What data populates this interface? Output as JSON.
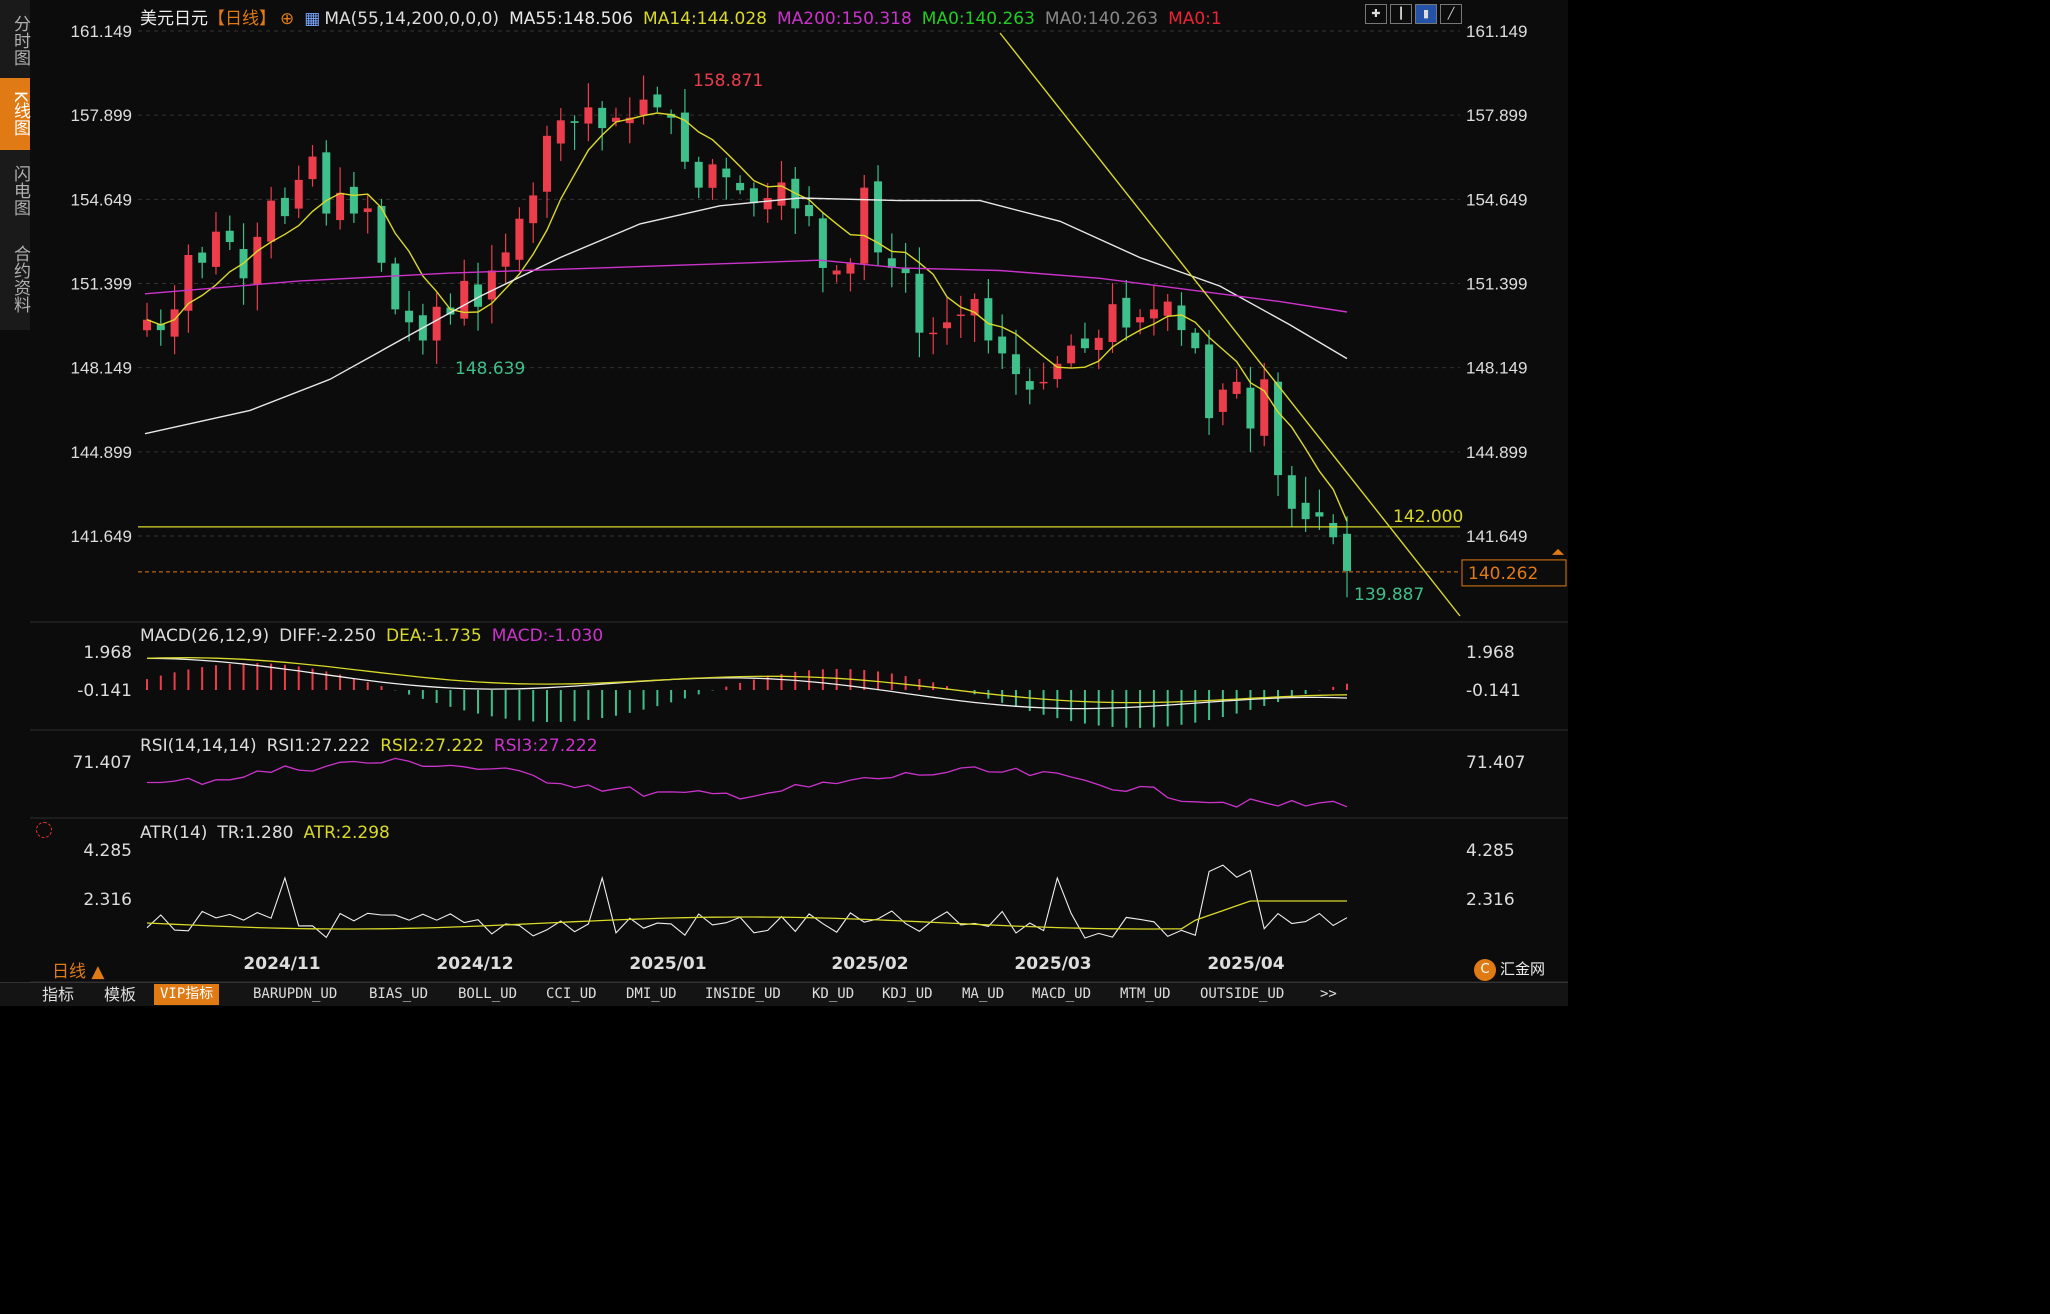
{
  "sidebar": {
    "items": [
      "分时图",
      "K线图",
      "闪电图",
      "合约资料"
    ],
    "active": 1
  },
  "header": {
    "symbol": "美元日元",
    "period": "【日线】",
    "plus": "⊕",
    "ma_label": "MA(55,14,200,0,0,0)",
    "ma55": "MA55:148.506",
    "ma14": "MA14:144.028",
    "ma200": "MA200:150.318",
    "ma0a": "MA0:140.263",
    "ma0b": "MA0:140.263",
    "ma0c": "MA0:1"
  },
  "colors": {
    "up": "#ec3d4c",
    "down": "#3fbf8a",
    "ma14": "#d9d92a",
    "ma55": "#e8e8e8",
    "ma200": "#cc33cc",
    "accent": "#e07a14",
    "grid": "#333333"
  },
  "price_axis": {
    "ticks": [
      "161.149",
      "157.899",
      "154.649",
      "151.399",
      "148.149",
      "144.899",
      "141.649"
    ],
    "current": "140.262",
    "hline_label": "142.000",
    "high_label": "158.871",
    "low1_label": "148.639",
    "low2_label": "139.887"
  },
  "macd": {
    "label": "MACD(26,12,9)",
    "diff": "DIFF:-2.250",
    "dea": "DEA:-1.735",
    "macd": "MACD:-1.030",
    "ticks": [
      "1.968",
      "-0.141"
    ]
  },
  "rsi": {
    "label": "RSI(14,14,14)",
    "rsi1": "RSI1:27.222",
    "rsi2": "RSI2:27.222",
    "rsi3": "RSI3:27.222",
    "ticks": [
      "71.407"
    ]
  },
  "atr": {
    "label": "ATR(14)",
    "tr": "TR:1.280",
    "atr": "ATR:2.298",
    "ticks": [
      "4.285",
      "2.316"
    ]
  },
  "dates": [
    "2024/11",
    "2024/12",
    "2025/01",
    "2025/02",
    "2025/03",
    "2025/04"
  ],
  "period_button": "日线 ▲",
  "tabs": [
    "指标",
    "模板",
    "VIP指标",
    "BARUPDN_UD",
    "BIAS_UD",
    "BOLL_UD",
    "CCI_UD",
    "DMI_UD",
    "INSIDE_UD",
    "KD_UD",
    "KDJ_UD",
    "MA_UD",
    "MACD_UD",
    "MTM_UD",
    "OUTSIDE_UD",
    ">>"
  ],
  "tab_active": 2,
  "logo": "汇金网",
  "chart_data": {
    "type": "candlestick",
    "title": "美元日元 日线",
    "dates": [
      "2024/11",
      "2024/12",
      "2025/01",
      "2025/02",
      "2025/03",
      "2025/04"
    ],
    "close_path": [
      150.0,
      149.6,
      150.4,
      152.5,
      152.2,
      153.4,
      153.0,
      151.6,
      153.2,
      154.6,
      154.0,
      155.4,
      156.3,
      154.1,
      154.9,
      154.1,
      154.3,
      152.2,
      150.4,
      149.9,
      149.2,
      150.5,
      150.2,
      151.5,
      150.5,
      151.9,
      152.6,
      153.9,
      154.8,
      157.1,
      157.7,
      157.6,
      158.2,
      157.4,
      157.8,
      157.8,
      158.5,
      158.2,
      157.8,
      156.1,
      155.1,
      156.0,
      155.5,
      155.0,
      154.5,
      154.7,
      155.3,
      154.3,
      154.0,
      152.0,
      151.9,
      152.2,
      155.1,
      152.6,
      152.0,
      151.8,
      149.5,
      149.5,
      149.9,
      150.2,
      150.8,
      149.2,
      148.7,
      147.9,
      147.3,
      147.6,
      148.3,
      149.0,
      148.9,
      149.3,
      150.6,
      149.7,
      150.1,
      150.4,
      150.7,
      149.6,
      148.9,
      146.2,
      147.3,
      147.6,
      145.8,
      147.7,
      144.0,
      142.7,
      142.3,
      142.4,
      141.6,
      140.3
    ],
    "series": [
      {
        "name": "MA14",
        "value": 144.028
      },
      {
        "name": "MA55",
        "value": 148.506
      },
      {
        "name": "MA200",
        "value": 150.318
      }
    ],
    "annotations": {
      "high": 158.871,
      "low_dec": 148.639,
      "low_apr": 139.887,
      "hline": 142.0,
      "last": 140.262
    },
    "ylim": [
      139.0,
      161.5
    ]
  }
}
